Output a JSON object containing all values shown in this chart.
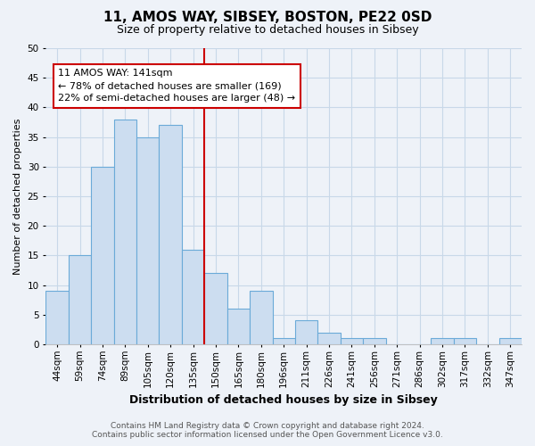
{
  "title": "11, AMOS WAY, SIBSEY, BOSTON, PE22 0SD",
  "subtitle": "Size of property relative to detached houses in Sibsey",
  "xlabel": "Distribution of detached houses by size in Sibsey",
  "ylabel": "Number of detached properties",
  "footer_line1": "Contains HM Land Registry data © Crown copyright and database right 2024.",
  "footer_line2": "Contains public sector information licensed under the Open Government Licence v3.0.",
  "bin_labels": [
    "44sqm",
    "59sqm",
    "74sqm",
    "89sqm",
    "105sqm",
    "120sqm",
    "135sqm",
    "150sqm",
    "165sqm",
    "180sqm",
    "196sqm",
    "211sqm",
    "226sqm",
    "241sqm",
    "256sqm",
    "271sqm",
    "286sqm",
    "302sqm",
    "317sqm",
    "332sqm",
    "347sqm"
  ],
  "bar_values": [
    9,
    15,
    30,
    38,
    35,
    37,
    16,
    12,
    6,
    9,
    1,
    4,
    2,
    1,
    1,
    0,
    0,
    1,
    1,
    0,
    1
  ],
  "bar_color": "#ccddf0",
  "bar_edge_color": "#6baad8",
  "vline_x_index": 6.5,
  "vline_color": "#cc0000",
  "ylim": [
    0,
    50
  ],
  "yticks": [
    0,
    5,
    10,
    15,
    20,
    25,
    30,
    35,
    40,
    45,
    50
  ],
  "annotation_title": "11 AMOS WAY: 141sqm",
  "annotation_line1": "← 78% of detached houses are smaller (169)",
  "annotation_line2": "22% of semi-detached houses are larger (48) →",
  "grid_color": "#c8d8e8",
  "background_color": "#eef2f8",
  "title_fontsize": 11,
  "subtitle_fontsize": 9,
  "xlabel_fontsize": 9,
  "ylabel_fontsize": 8,
  "tick_fontsize": 7.5,
  "footer_fontsize": 6.5,
  "annotation_fontsize": 8
}
